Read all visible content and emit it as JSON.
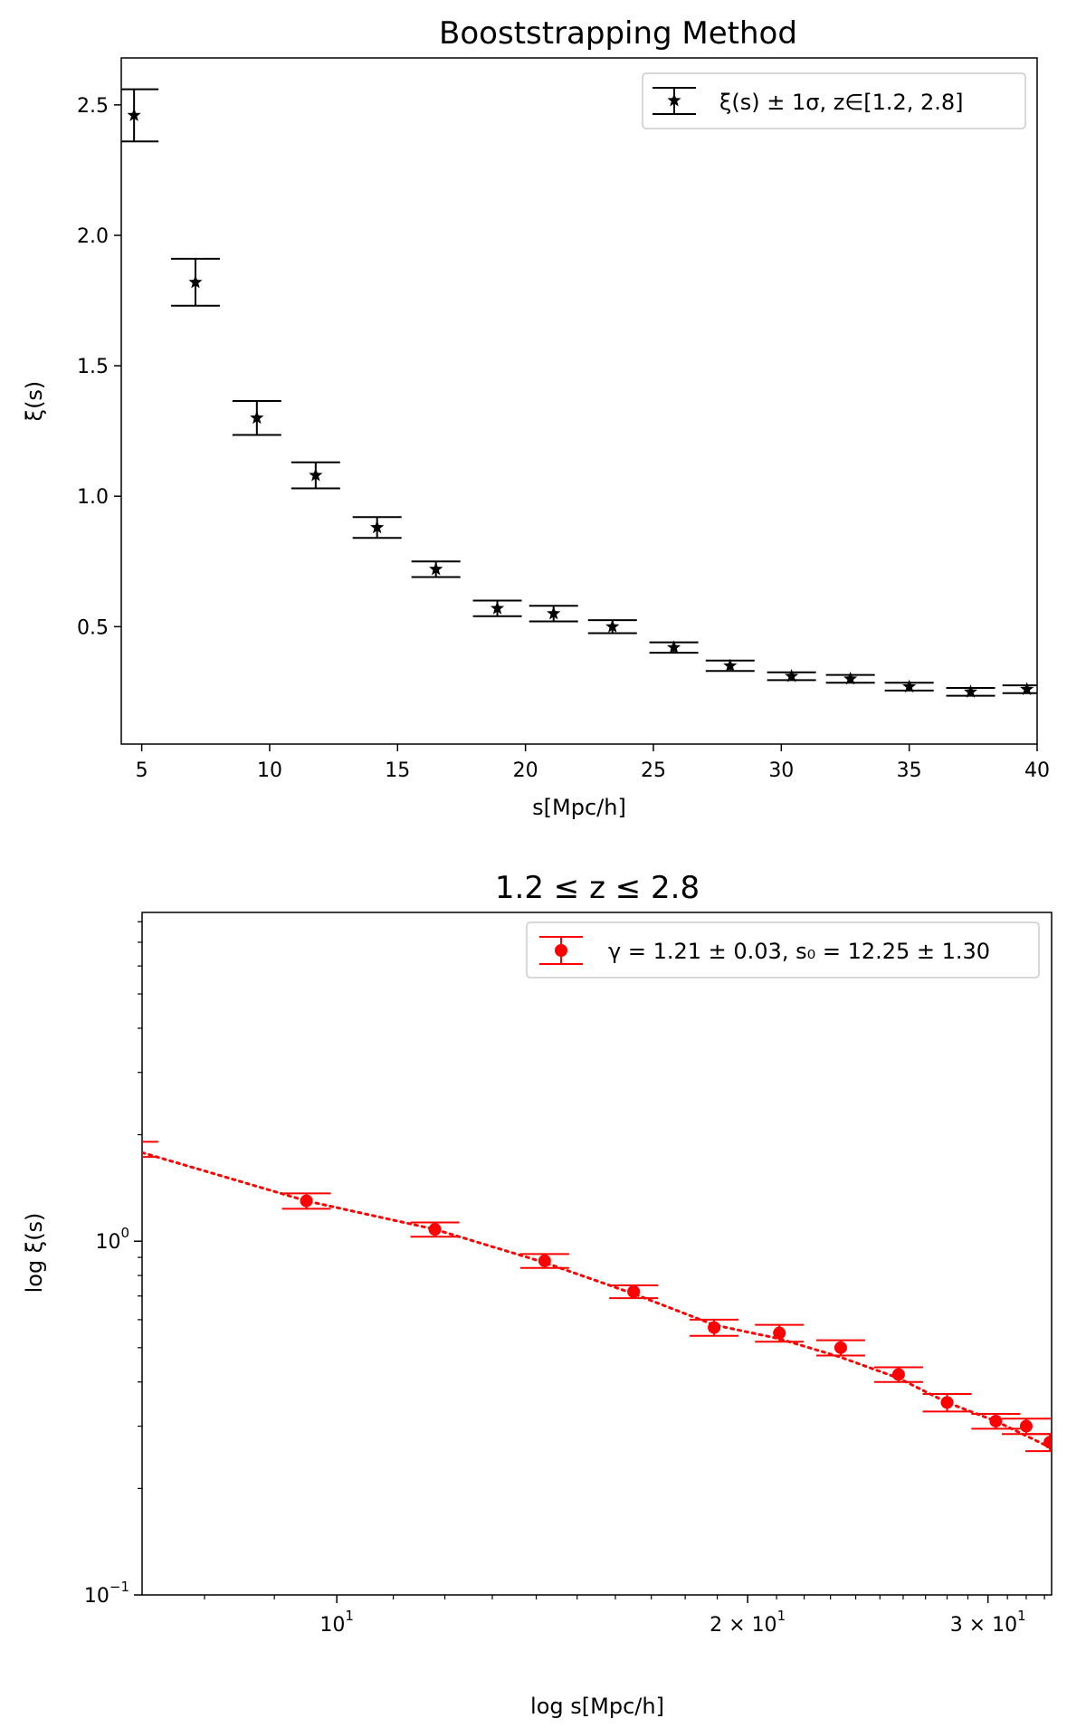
{
  "chart_data": [
    {
      "type": "scatter",
      "title": "Booststrapping Method",
      "xlabel": "s[Mpc/h]",
      "ylabel": "ξ(s)",
      "xlim": [
        4.2,
        40
      ],
      "ylim": [
        0.05,
        2.68
      ],
      "x_ticks": [
        5,
        10,
        15,
        20,
        25,
        30,
        35,
        40
      ],
      "y_ticks": [
        0.5,
        1.0,
        1.5,
        2.0,
        2.5
      ],
      "x_tick_labels": [
        "5",
        "10",
        "15",
        "20",
        "25",
        "30",
        "35",
        "40"
      ],
      "y_tick_labels": [
        "0.5",
        "1.0",
        "1.5",
        "2.0",
        "2.5"
      ],
      "grid": false,
      "legend_position": "top-right",
      "series": [
        {
          "name": "ξ(s) ± 1σ, z∈[1.2, 2.8]",
          "marker": "star",
          "color": "#000000",
          "x": [
            4.7,
            7.1,
            9.5,
            11.8,
            14.2,
            16.5,
            18.9,
            21.1,
            23.4,
            25.8,
            28.0,
            30.4,
            32.7,
            35.0,
            37.4,
            39.6
          ],
          "y": [
            2.46,
            1.82,
            1.3,
            1.08,
            0.88,
            0.72,
            0.57,
            0.55,
            0.5,
            0.42,
            0.35,
            0.31,
            0.3,
            0.27,
            0.25,
            0.26
          ],
          "yerr": [
            0.1,
            0.09,
            0.065,
            0.05,
            0.04,
            0.03,
            0.03,
            0.03,
            0.025,
            0.02,
            0.02,
            0.015,
            0.015,
            0.015,
            0.015,
            0.015
          ]
        }
      ]
    },
    {
      "type": "scatter",
      "title": "1.2 ≤ z ≤ 2.8",
      "xlabel": "log s[Mpc/h]",
      "ylabel": "log ξ(s)",
      "xscale": "log",
      "yscale": "log",
      "xlim": [
        7.2,
        33.4
      ],
      "ylim": [
        0.1,
        8.5
      ],
      "x_ticks": [
        10,
        20,
        30
      ],
      "y_ticks": [
        0.1,
        1
      ],
      "x_tick_labels": [
        {
          "base": "10",
          "exp": "1",
          "prefix": ""
        },
        {
          "base": "10",
          "exp": "1",
          "prefix": "2 × "
        },
        {
          "base": "10",
          "exp": "1",
          "prefix": "3 × "
        }
      ],
      "y_tick_labels": [
        {
          "base": "10",
          "exp": "−1"
        },
        {
          "base": "10",
          "exp": "0"
        }
      ],
      "grid": false,
      "legend_position": "top-right",
      "series": [
        {
          "name": "γ = 1.21 ± 0.03, s₀ = 12.25 ± 1.30",
          "marker": "circle",
          "color": "#ff0000",
          "x": [
            7.1,
            9.5,
            11.8,
            14.2,
            16.5,
            18.9,
            21.1,
            23.4,
            25.8,
            28.0,
            30.4,
            32.0,
            33.3
          ],
          "y": [
            1.82,
            1.3,
            1.08,
            0.88,
            0.72,
            0.57,
            0.55,
            0.5,
            0.42,
            0.35,
            0.31,
            0.3,
            0.27
          ],
          "yerr": [
            0.09,
            0.065,
            0.05,
            0.04,
            0.03,
            0.03,
            0.03,
            0.025,
            0.02,
            0.02,
            0.015,
            0.015,
            0.015
          ],
          "fit": {
            "style": "dotted",
            "x": [
              7.2,
              9.5,
              11.8,
              14.2,
              16.5,
              18.9,
              21.1,
              23.4,
              25.8,
              28.0,
              30.4,
              33.4
            ],
            "y": [
              1.78,
              1.3,
              1.08,
              0.87,
              0.71,
              0.58,
              0.53,
              0.47,
              0.41,
              0.35,
              0.31,
              0.26
            ]
          }
        }
      ]
    }
  ]
}
